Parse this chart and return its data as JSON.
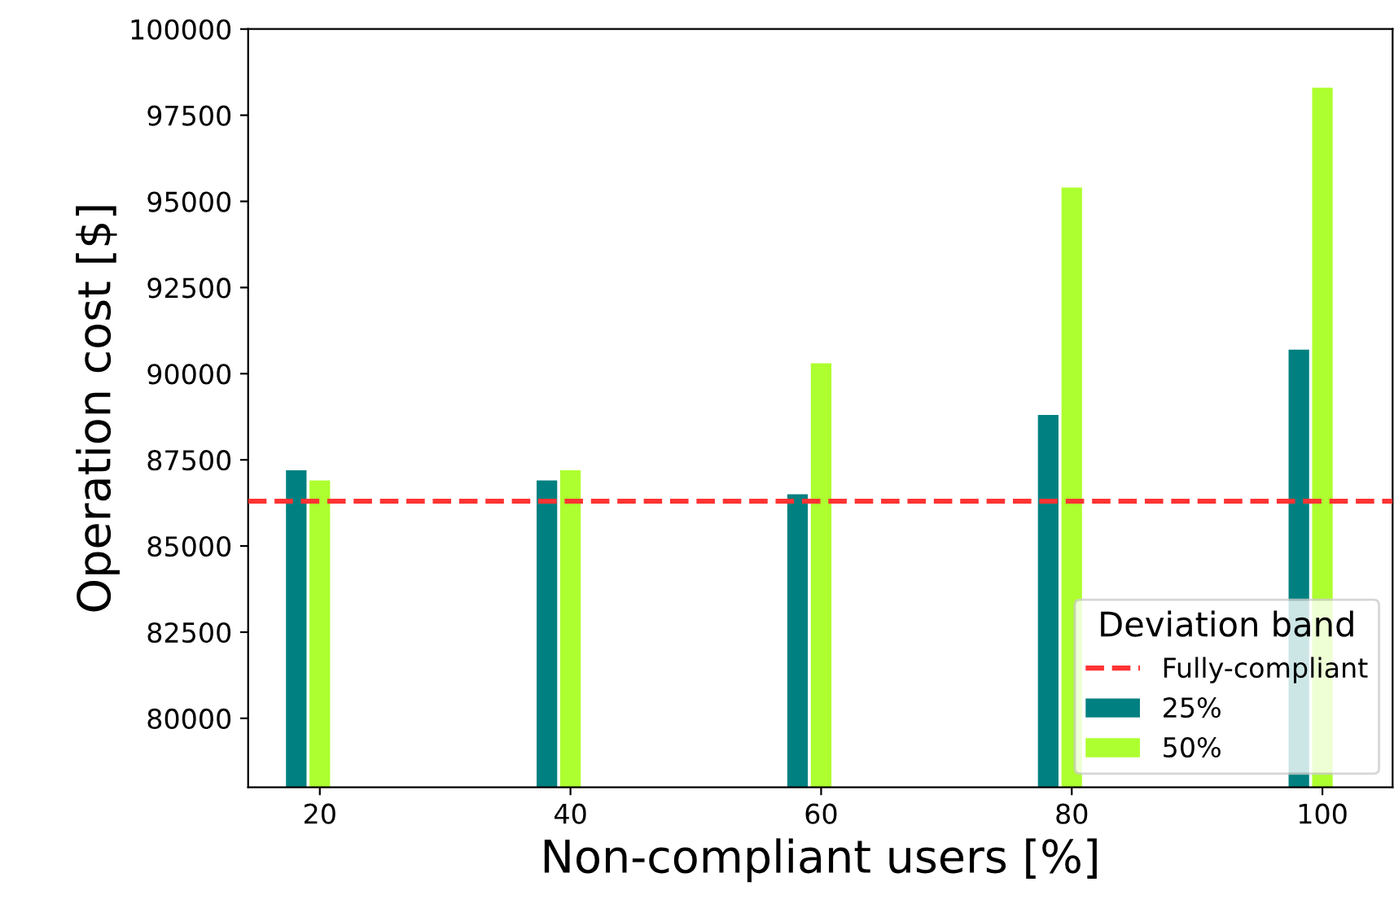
{
  "chart_data": {
    "type": "bar",
    "xlabel": "Non-compliant users [%]",
    "ylabel": "Operation cost [$]",
    "categories": [
      "20",
      "40",
      "60",
      "80",
      "100"
    ],
    "series": [
      {
        "name": "25%",
        "color": "#008080",
        "values": [
          87200,
          86900,
          86500,
          88800,
          90700
        ]
      },
      {
        "name": "50%",
        "color": "#adff2f",
        "values": [
          86900,
          87200,
          90300,
          95400,
          98300
        ]
      }
    ],
    "ylim": [
      78000,
      100000
    ],
    "yticks": [
      80000,
      82500,
      85000,
      87500,
      90000,
      92500,
      95000,
      97500,
      100000
    ],
    "ref_lines": [
      {
        "axis": "y",
        "value": 86300,
        "label": "Fully-compliant",
        "color": "#ff3333",
        "line_style": "dashed"
      }
    ],
    "legend_title": "Deviation band",
    "legend": "bottom right",
    "grid": false
  }
}
